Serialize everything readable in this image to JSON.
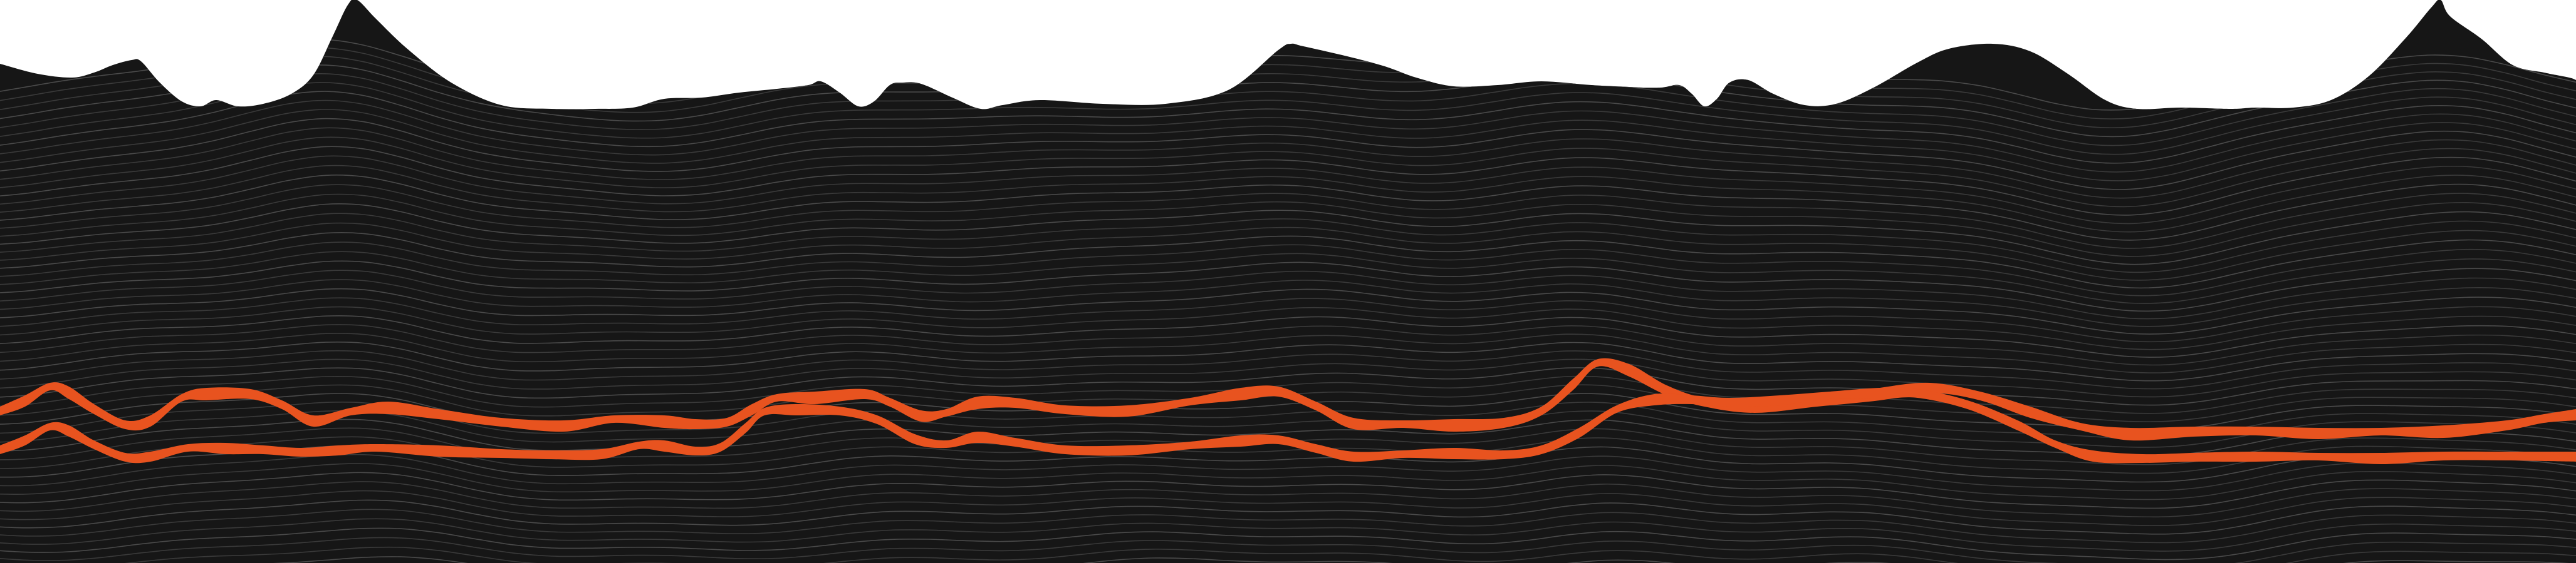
{
  "artwork": {
    "kind": "wave-terrain-illustration",
    "colors": {
      "background": "#ffffff",
      "terrain_fill": "#161616",
      "contour_line": "#3a3a3a",
      "contour_line_light": "#4a4a4a",
      "accent_band": "#e8531f"
    },
    "elements": [
      "mountain-silhouette",
      "contour-line-field",
      "accent-wave-band-upper",
      "accent-wave-band-lower"
    ]
  }
}
